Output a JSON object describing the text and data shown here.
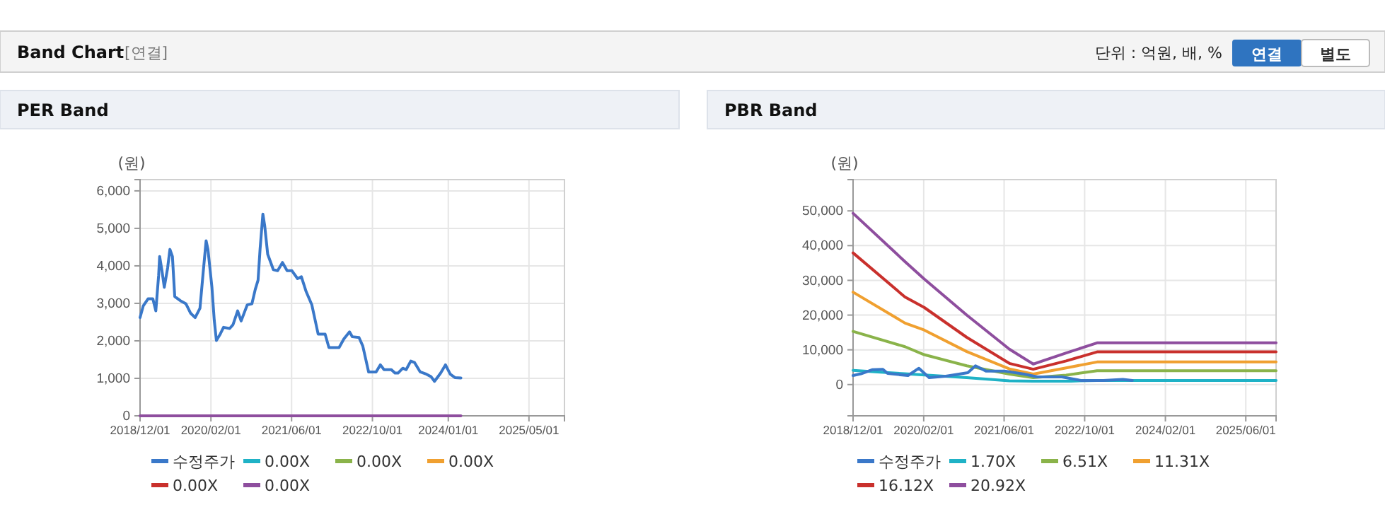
{
  "chart_data": [
    {
      "type": "line",
      "title": "PER Band",
      "ylabel": "(원)",
      "annotations": [
        "Band Chart",
        "[연결]",
        "단위 : 억원, 배, %",
        "연결",
        "별도"
      ],
      "xlim": [
        "2018-12-01",
        "2025-12-01"
      ],
      "xticks": [
        {
          "value": "2018-12-01",
          "label": "2018/12/01"
        },
        {
          "value": "2020-02-01",
          "label": "2020/02/01"
        },
        {
          "value": "2021-06-01",
          "label": "2021/06/01"
        },
        {
          "value": "2022-10-01",
          "label": "2022/10/01"
        },
        {
          "value": "2024-01-01",
          "label": "2024/01/01"
        },
        {
          "value": "2025-05-01",
          "label": "2025/05/01"
        }
      ],
      "ylim": [
        0,
        6300
      ],
      "yticks": [
        {
          "value": 0,
          "label": "0"
        },
        {
          "value": 1000,
          "label": "1,000"
        },
        {
          "value": 2000,
          "label": "2,000"
        },
        {
          "value": 3000,
          "label": "3,000"
        },
        {
          "value": 4000,
          "label": "4,000"
        },
        {
          "value": 5000,
          "label": "5,000"
        },
        {
          "value": 6000,
          "label": "6,000"
        }
      ],
      "grid": true,
      "legend": "bottom",
      "marker": "none",
      "line_style": "solid",
      "series": [
        {
          "name": "수정주가",
          "color": "#3a78c9",
          "x": [
            "2018-12-01",
            "2018-12-20",
            "2019-01-18",
            "2019-02-16",
            "2019-03-06",
            "2019-03-23",
            "2019-03-29",
            "2019-04-12",
            "2019-04-26",
            "2019-05-16",
            "2019-05-30",
            "2019-06-14",
            "2019-06-28",
            "2019-08-05",
            "2019-09-03",
            "2019-10-01",
            "2019-10-29",
            "2019-11-27",
            "2019-12-16",
            "2020-01-03",
            "2020-01-14",
            "2020-02-07",
            "2020-02-21",
            "2020-03-05",
            "2020-03-28",
            "2020-04-17",
            "2020-05-24",
            "2020-06-13",
            "2020-07-11",
            "2020-08-01",
            "2020-09-07",
            "2020-10-05",
            "2020-10-25",
            "2020-11-11",
            "2020-11-23",
            "2020-12-10",
            "2020-12-21",
            "2021-01-08",
            "2021-02-11",
            "2021-03-09",
            "2021-04-07",
            "2021-05-05",
            "2021-06-03",
            "2021-07-07",
            "2021-07-30",
            "2021-08-28",
            "2021-10-01",
            "2021-11-08",
            "2021-12-20",
            "2022-01-12",
            "2022-03-14",
            "2022-04-12",
            "2022-05-16",
            "2022-06-02",
            "2022-07-12",
            "2022-08-04",
            "2022-09-08",
            "2022-10-23",
            "2022-11-18",
            "2022-12-10",
            "2023-01-23",
            "2023-02-14",
            "2023-03-04",
            "2023-04-02",
            "2023-04-22",
            "2023-05-20",
            "2023-06-12",
            "2023-07-16",
            "2023-08-23",
            "2023-09-20",
            "2023-10-10",
            "2023-11-16",
            "2023-12-15",
            "2024-01-13",
            "2024-02-10",
            "2024-03-17"
          ],
          "values": [
            2620,
            2930,
            3120,
            3120,
            2800,
            3750,
            4250,
            3870,
            3430,
            3940,
            4440,
            4250,
            3180,
            3060,
            2990,
            2740,
            2620,
            2870,
            3810,
            4670,
            4440,
            3430,
            2550,
            2010,
            2180,
            2360,
            2330,
            2430,
            2800,
            2530,
            2960,
            2990,
            3370,
            3620,
            4440,
            5380,
            5070,
            4310,
            3900,
            3870,
            4090,
            3870,
            3870,
            3660,
            3710,
            3310,
            2960,
            2180,
            2180,
            1820,
            1820,
            2050,
            2240,
            2110,
            2090,
            1860,
            1170,
            1170,
            1360,
            1230,
            1230,
            1140,
            1140,
            1270,
            1230,
            1460,
            1420,
            1170,
            1110,
            1040,
            920,
            1140,
            1360,
            1110,
            1020,
            1010
          ]
        },
        {
          "name": "0.00X",
          "color": "#1fb2c6",
          "values": [
            null
          ]
        },
        {
          "name": "0.00X",
          "color": "#8ab34a",
          "values": [
            null
          ]
        },
        {
          "name": "0.00X",
          "color": "#f0a030",
          "values": [
            null
          ]
        },
        {
          "name": "0.00X",
          "color": "#c9302c",
          "values": [
            null
          ]
        },
        {
          "name": "0.00X",
          "color": "#8e4e9e",
          "x": [
            "2018-12-01",
            "2024-03-17"
          ],
          "values": [
            0,
            0
          ]
        }
      ]
    },
    {
      "type": "line",
      "title": "PBR Band",
      "ylabel": "(원)",
      "xlim": [
        "2018-12-01",
        "2025-12-01"
      ],
      "xticks": [
        {
          "value": "2018-12-01",
          "label": "2018/12/01"
        },
        {
          "value": "2020-02-01",
          "label": "2020/02/01"
        },
        {
          "value": "2021-06-01",
          "label": "2021/06/01"
        },
        {
          "value": "2022-10-01",
          "label": "2022/10/01"
        },
        {
          "value": "2024-02-01",
          "label": "2024/02/01"
        },
        {
          "value": "2025-06-01",
          "label": "2025/06/01"
        }
      ],
      "ylim": [
        -9000,
        59000
      ],
      "yticks": [
        {
          "value": 0,
          "label": "0"
        },
        {
          "value": 10000,
          "label": "10,000"
        },
        {
          "value": 20000,
          "label": "20,000"
        },
        {
          "value": 30000,
          "label": "30,000"
        },
        {
          "value": 40000,
          "label": "40,000"
        },
        {
          "value": 50000,
          "label": "50,000"
        }
      ],
      "grid": true,
      "legend": "bottom",
      "marker": "none",
      "line_style": "solid",
      "series": [
        {
          "name": "수정주가",
          "color": "#3a78c9",
          "x": [
            "2018-12-01",
            "2019-01-18",
            "2019-03-29",
            "2019-05-30",
            "2019-06-28",
            "2019-10-29",
            "2020-01-03",
            "2020-03-05",
            "2020-06-13",
            "2020-10-25",
            "2020-12-10",
            "2021-02-11",
            "2021-06-03",
            "2021-10-01",
            "2021-12-20",
            "2022-05-16",
            "2022-09-08",
            "2023-01-23",
            "2023-05-20",
            "2023-07-16"
          ],
          "values": [
            2600,
            3100,
            4300,
            4400,
            3200,
            2600,
            4700,
            2000,
            2400,
            3400,
            5400,
            3900,
            3900,
            3000,
            2200,
            2200,
            1200,
            1200,
            1500,
            1200
          ]
        },
        {
          "name": "1.70X",
          "color": "#1fb2c6",
          "x": [
            "2018-12-01",
            "2019-10-11",
            "2020-10-18",
            "2021-07-03",
            "2021-11-24",
            "2022-07-10",
            "2022-12-15",
            "2025-12-01"
          ],
          "values": [
            4100,
            3100,
            2000,
            1100,
            1000,
            1000,
            1200,
            1200
          ]
        },
        {
          "name": "6.51X",
          "color": "#8ab34a",
          "x": [
            "2018-12-01",
            "2019-10-11",
            "2020-02-04",
            "2020-10-18",
            "2021-07-03",
            "2021-11-24",
            "2022-06-11",
            "2022-12-15",
            "2025-12-01"
          ],
          "values": [
            15300,
            10900,
            8600,
            5400,
            3000,
            2000,
            2700,
            4000,
            4000
          ]
        },
        {
          "name": "11.31X",
          "color": "#f0a030",
          "x": [
            "2018-12-01",
            "2019-10-11",
            "2020-02-04",
            "2020-10-18",
            "2021-07-03",
            "2021-11-24",
            "2022-06-11",
            "2022-12-15",
            "2025-12-01"
          ],
          "values": [
            26600,
            17700,
            15700,
            9500,
            4500,
            3000,
            4800,
            6500,
            6500
          ]
        },
        {
          "name": "16.12X",
          "color": "#c9302c",
          "x": [
            "2018-12-01",
            "2019-10-11",
            "2020-02-04",
            "2020-10-18",
            "2021-07-03",
            "2021-11-24",
            "2022-06-11",
            "2022-12-15",
            "2025-12-01"
          ],
          "values": [
            37900,
            25200,
            22200,
            13600,
            6100,
            4400,
            6800,
            9400,
            9400
          ]
        },
        {
          "name": "20.92X",
          "color": "#8e4e9e",
          "x": [
            "2018-12-01",
            "2019-10-11",
            "2020-02-04",
            "2020-10-18",
            "2021-07-03",
            "2021-11-24",
            "2022-06-11",
            "2022-12-15",
            "2025-12-01"
          ],
          "values": [
            49300,
            35400,
            30400,
            20000,
            10200,
            5900,
            9100,
            12000,
            12000
          ]
        }
      ]
    }
  ]
}
